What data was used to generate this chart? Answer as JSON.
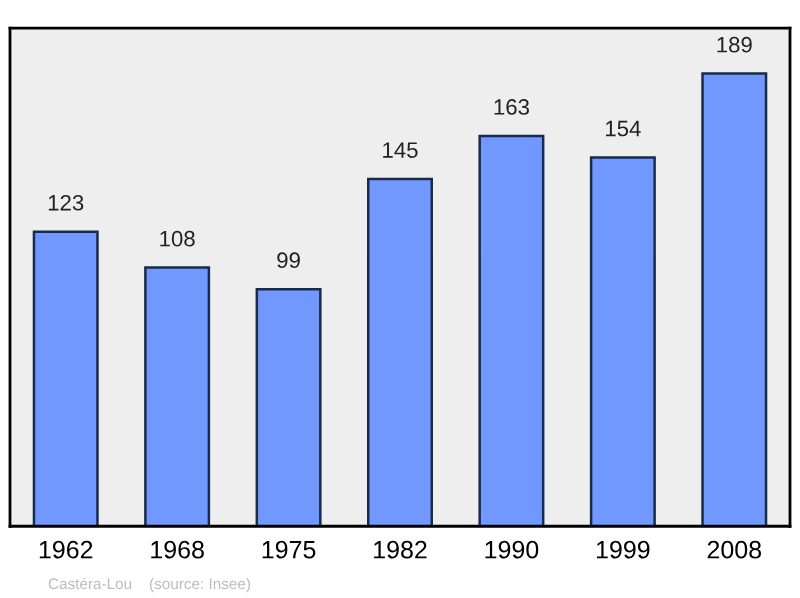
{
  "chart_data": {
    "type": "bar",
    "categories": [
      "1962",
      "1968",
      "1975",
      "1982",
      "1990",
      "1999",
      "2008"
    ],
    "values": [
      123,
      108,
      99,
      145,
      163,
      154,
      189
    ],
    "color": "#7098ff",
    "data_labels": true,
    "ylim": [
      0,
      208
    ],
    "tick_labels": "x",
    "grid": false,
    "legend": false,
    "annotations": [
      "Castéra-Lou    (source: Insee)"
    ]
  }
}
